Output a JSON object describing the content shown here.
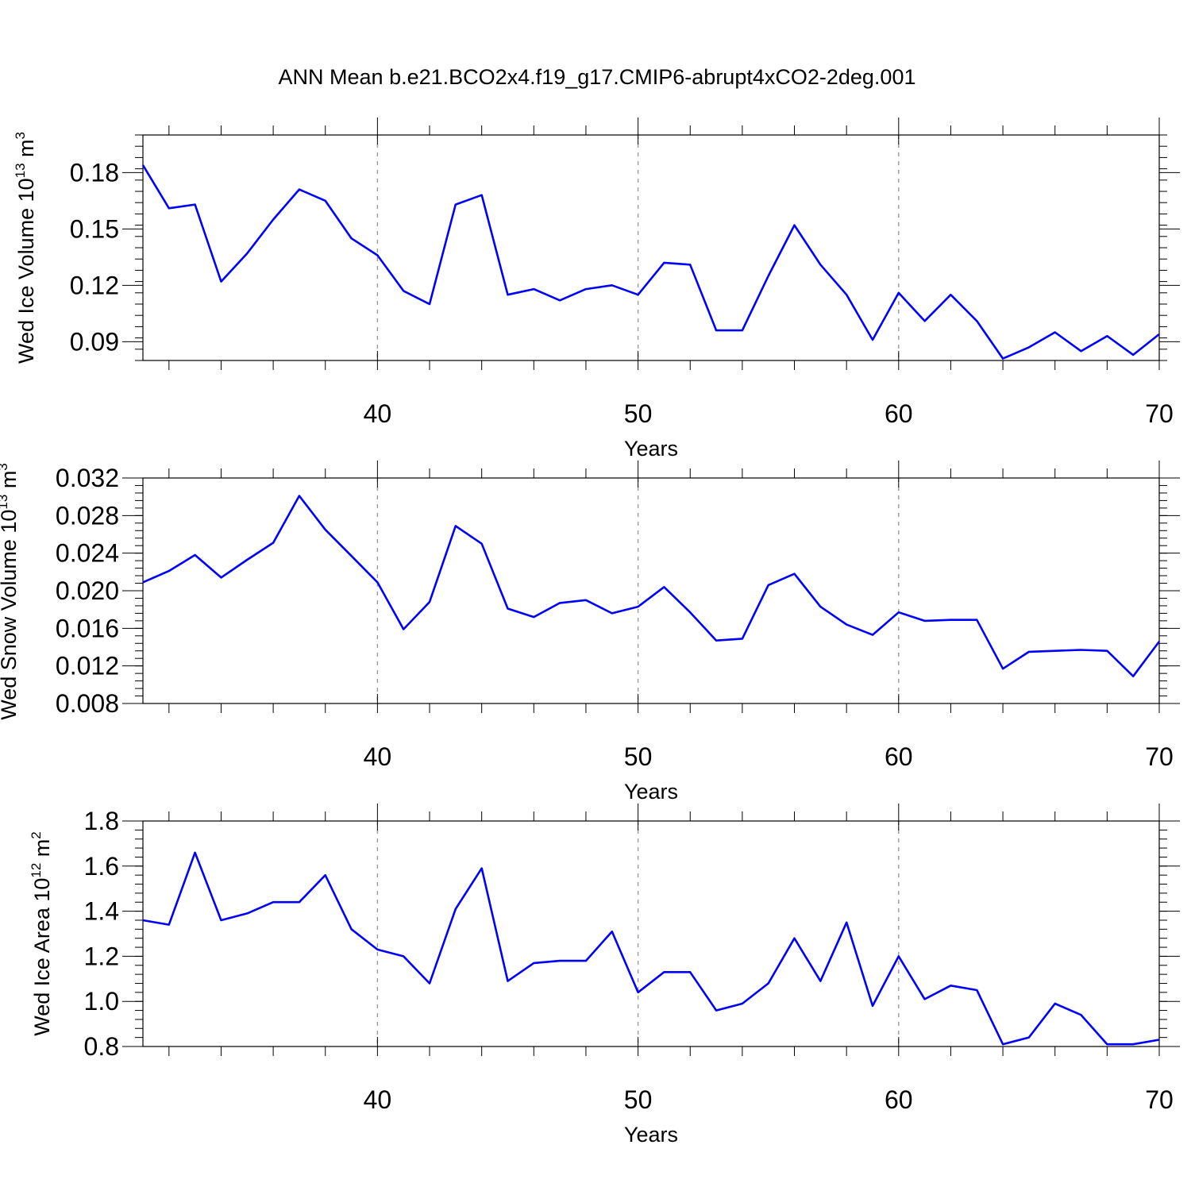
{
  "title": "ANN Mean b.e21.BCO2x4.f19_g17.CMIP6-abrupt4xCO2-2deg.001",
  "colors": {
    "series": "#0000ff",
    "grid": "#9a9a9a",
    "frame": "#000000"
  },
  "chart_data": [
    {
      "type": "line",
      "ylabel": {
        "text": "Wed Ice Volume 10",
        "exp": "13",
        "unit": " m",
        "unit_exp": "3"
      },
      "xlabel": "Years",
      "xlim": [
        31,
        70
      ],
      "ylim": [
        0.08,
        0.2
      ]
    },
    {
      "type": "line",
      "ylabel": {
        "text": "Wed Snow Volume 10",
        "exp": "13",
        "unit": " m",
        "unit_exp": "3"
      },
      "xlabel": "Years",
      "xlim": [
        31,
        70
      ],
      "ylim": [
        0.008,
        0.032
      ]
    },
    {
      "type": "line",
      "ylabel": {
        "text": "Wed Ice Area 10",
        "exp": "12",
        "unit": " m",
        "unit_exp": "2"
      },
      "xlabel": "Years",
      "xlim": [
        31,
        70
      ],
      "ylim": [
        0.8,
        1.8
      ]
    }
  ],
  "panels": [
    {
      "x_ticks": [
        40,
        50,
        60,
        70
      ],
      "x_tick_labels": [
        "40",
        "50",
        "60",
        "70"
      ],
      "y_ticks": [
        0.09,
        0.12,
        0.15,
        0.18
      ],
      "y_tick_labels": [
        "0.09",
        "0.12",
        "0.15",
        "0.18"
      ],
      "x": [
        31,
        32,
        33,
        34,
        35,
        36,
        37,
        38,
        39,
        40,
        41,
        42,
        43,
        44,
        45,
        46,
        47,
        48,
        49,
        50,
        51,
        52,
        53,
        54,
        55,
        56,
        57,
        58,
        59,
        60,
        61,
        62,
        63,
        64,
        65,
        66,
        67,
        68,
        69,
        70
      ],
      "y": [
        0.184,
        0.161,
        0.163,
        0.122,
        0.137,
        0.155,
        0.171,
        0.165,
        0.145,
        0.136,
        0.117,
        0.11,
        0.163,
        0.168,
        0.115,
        0.118,
        0.112,
        0.118,
        0.12,
        0.115,
        0.132,
        0.131,
        0.096,
        0.096,
        0.125,
        0.152,
        0.131,
        0.115,
        0.091,
        0.116,
        0.101,
        0.115,
        0.101,
        0.081,
        0.087,
        0.095,
        0.085,
        0.093,
        0.083,
        0.094
      ]
    },
    {
      "x_ticks": [
        40,
        50,
        60,
        70
      ],
      "x_tick_labels": [
        "40",
        "50",
        "60",
        "70"
      ],
      "y_ticks": [
        0.008,
        0.012,
        0.016,
        0.02,
        0.024,
        0.028,
        0.032
      ],
      "y_tick_labels": [
        "0.008",
        "0.012",
        "0.016",
        "0.020",
        "0.024",
        "0.028",
        "0.032"
      ],
      "x": [
        31,
        32,
        33,
        34,
        35,
        36,
        37,
        38,
        39,
        40,
        41,
        42,
        43,
        44,
        45,
        46,
        47,
        48,
        49,
        50,
        51,
        52,
        53,
        54,
        55,
        56,
        57,
        58,
        59,
        60,
        61,
        62,
        63,
        64,
        65,
        66,
        67,
        68,
        69,
        70
      ],
      "y": [
        0.0209,
        0.0221,
        0.0238,
        0.0214,
        0.0233,
        0.0251,
        0.0301,
        0.0265,
        0.0237,
        0.0209,
        0.0159,
        0.0188,
        0.0269,
        0.025,
        0.0181,
        0.0172,
        0.0187,
        0.019,
        0.0176,
        0.0183,
        0.0204,
        0.0177,
        0.0147,
        0.0149,
        0.0206,
        0.0218,
        0.0183,
        0.0164,
        0.0153,
        0.0177,
        0.0168,
        0.0169,
        0.0169,
        0.0117,
        0.0135,
        0.0136,
        0.0137,
        0.0136,
        0.0109,
        0.0146
      ]
    },
    {
      "x_ticks": [
        40,
        50,
        60,
        70
      ],
      "x_tick_labels": [
        "40",
        "50",
        "60",
        "70"
      ],
      "y_ticks": [
        0.8,
        1.0,
        1.2,
        1.4,
        1.6,
        1.8
      ],
      "y_tick_labels": [
        "0.8",
        "1.0",
        "1.2",
        "1.4",
        "1.6",
        "1.8"
      ],
      "x": [
        31,
        32,
        33,
        34,
        35,
        36,
        37,
        38,
        39,
        40,
        41,
        42,
        43,
        44,
        45,
        46,
        47,
        48,
        49,
        50,
        51,
        52,
        53,
        54,
        55,
        56,
        57,
        58,
        59,
        60,
        61,
        62,
        63,
        64,
        65,
        66,
        67,
        68,
        69,
        70
      ],
      "y": [
        1.36,
        1.34,
        1.66,
        1.36,
        1.39,
        1.44,
        1.44,
        1.56,
        1.32,
        1.23,
        1.2,
        1.08,
        1.41,
        1.59,
        1.09,
        1.17,
        1.18,
        1.18,
        1.31,
        1.04,
        1.13,
        1.13,
        0.96,
        0.99,
        1.08,
        1.28,
        1.09,
        1.35,
        0.98,
        1.2,
        1.01,
        1.07,
        1.05,
        0.81,
        0.84,
        0.99,
        0.94,
        0.81,
        0.81,
        0.83
      ]
    }
  ]
}
